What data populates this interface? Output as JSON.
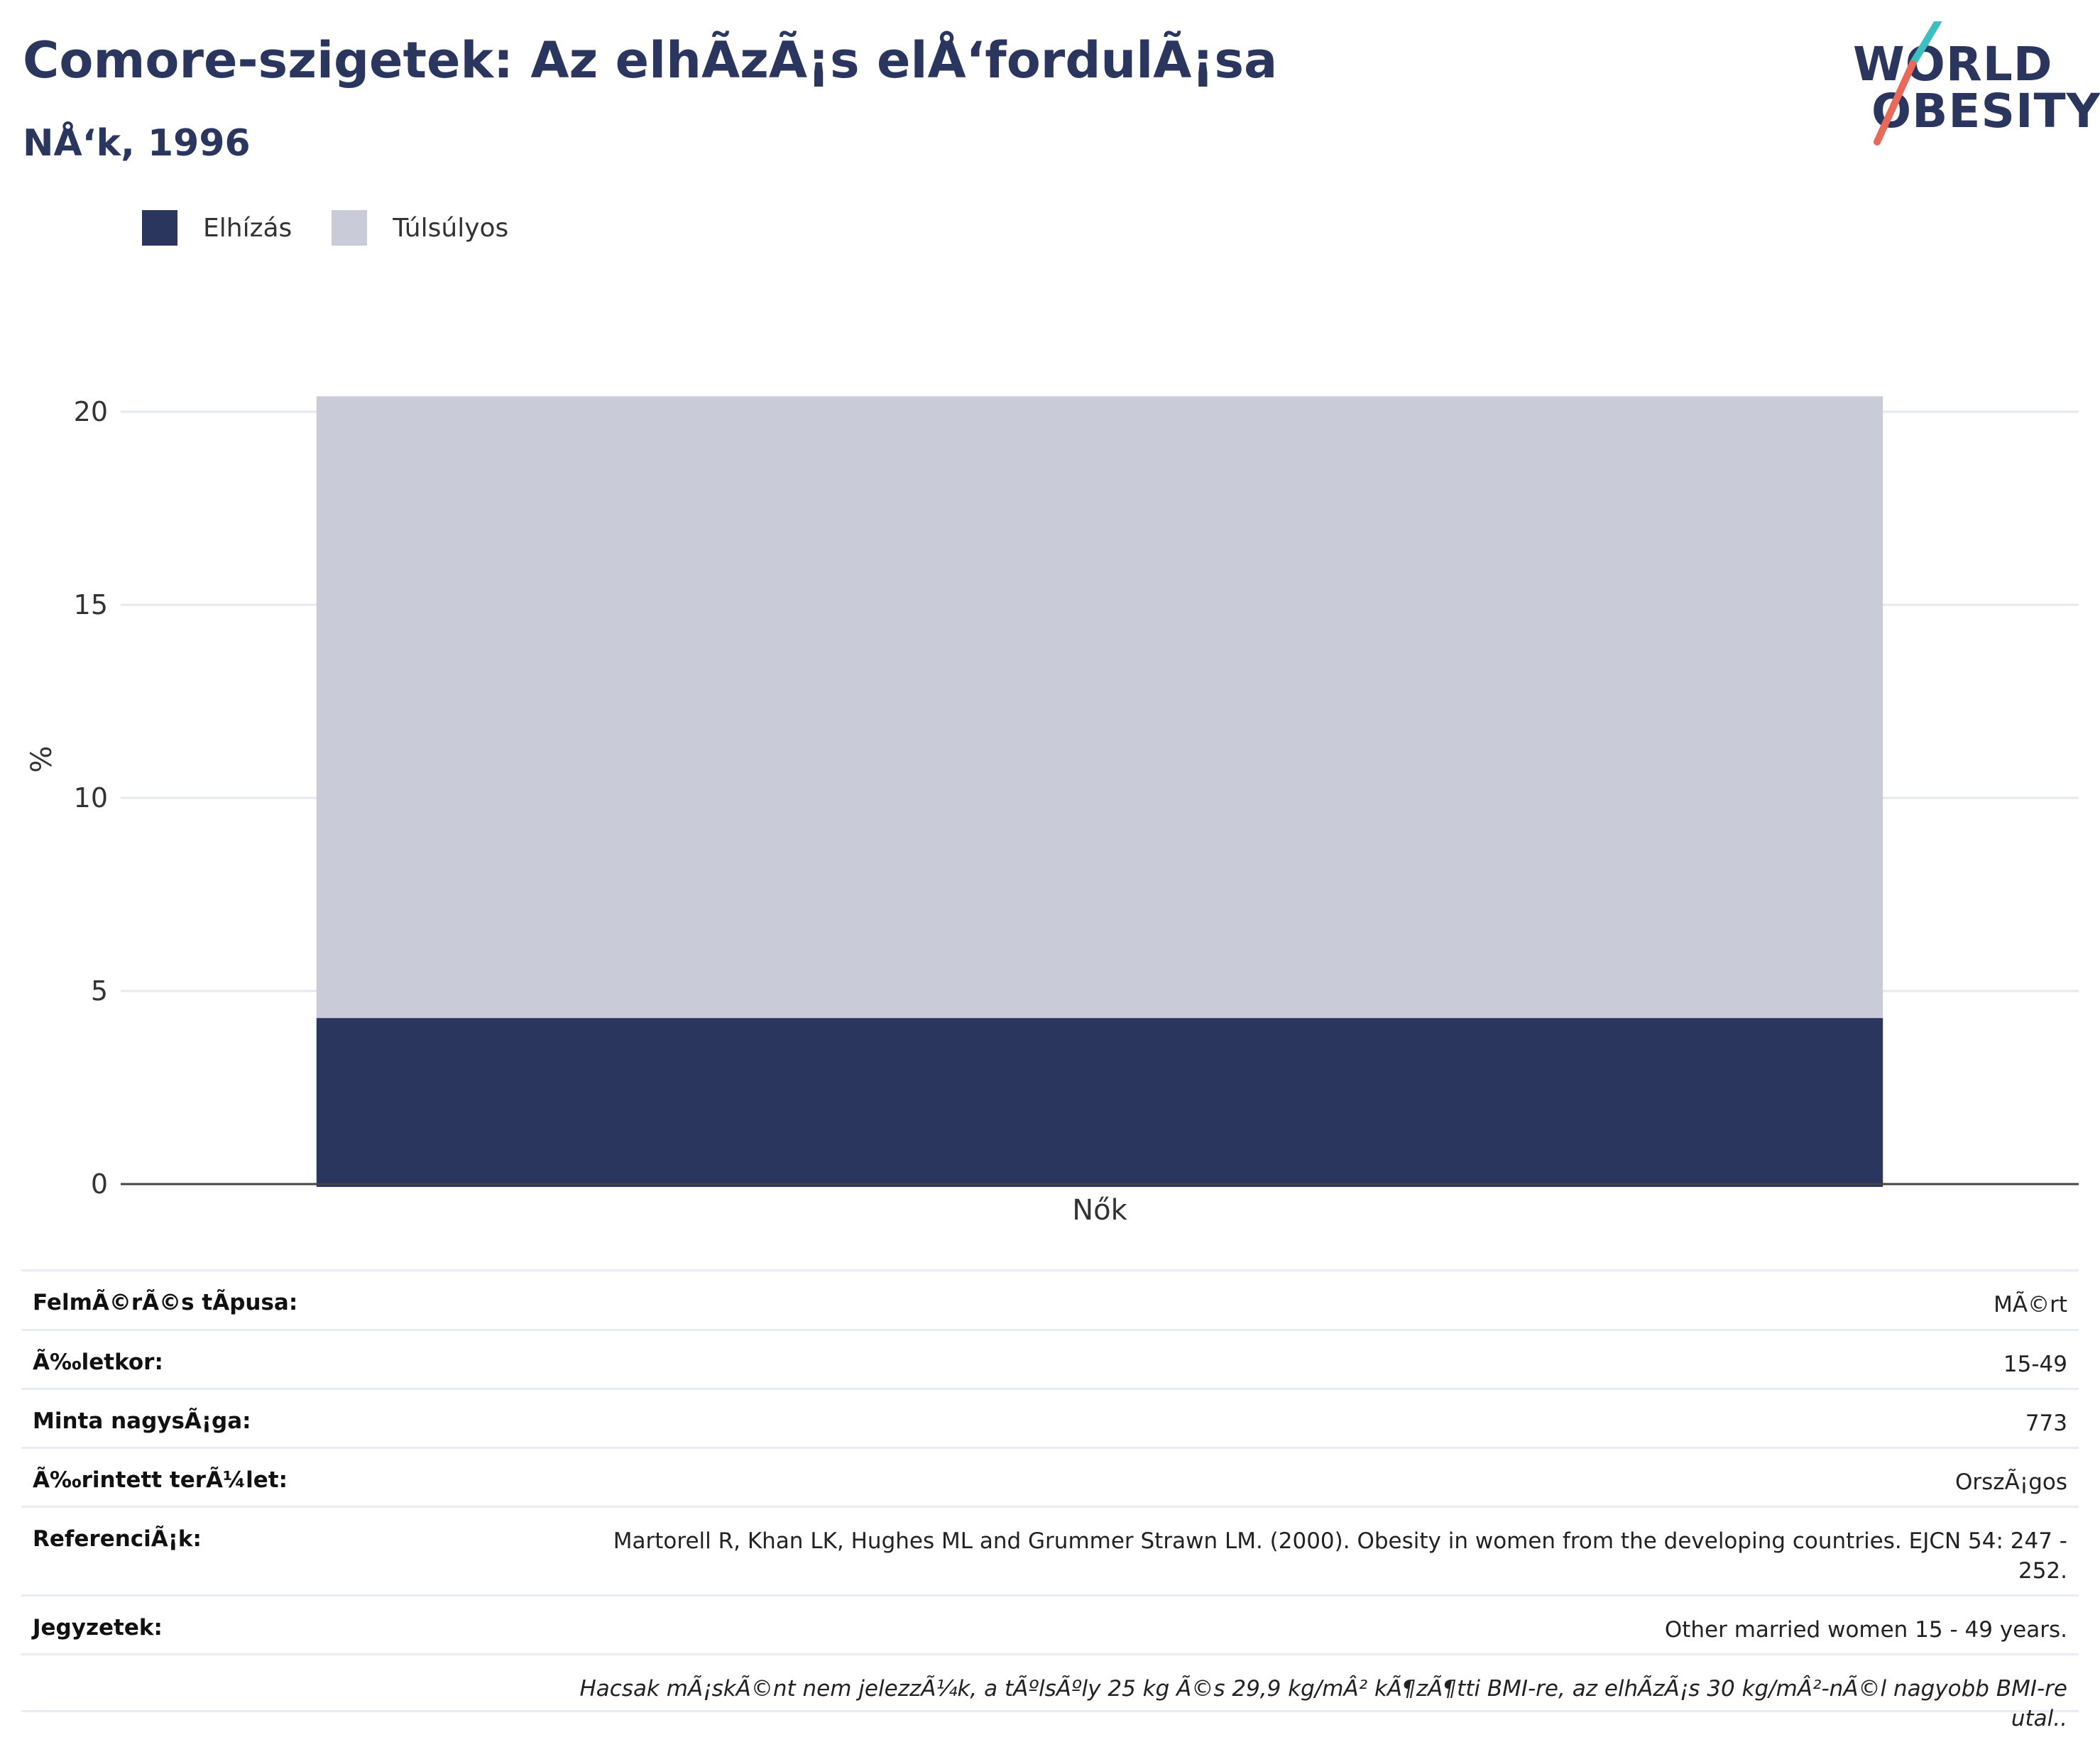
{
  "header": {
    "title": "Comore-szigetek: Az elhÃzÃ¡s elÅ‘fordulÃ¡sa",
    "subtitle": "NÅ‘k, 1996"
  },
  "logo": {
    "line1": "WORLD",
    "line2": "OBESITY",
    "accent_teal": "#3ebfbf",
    "accent_red": "#e8685a"
  },
  "legend": {
    "items": [
      {
        "label": "Elhízás",
        "color": "#2b365f"
      },
      {
        "label": "Túlsúlyos",
        "color": "#c9ccd8"
      }
    ]
  },
  "chart_data": {
    "type": "bar",
    "stacked": true,
    "categories": [
      "Nők"
    ],
    "series": [
      {
        "name": "Elhízás",
        "values": [
          4.3
        ],
        "color": "#2b365f"
      },
      {
        "name": "Túlsúlyos",
        "values": [
          16.1
        ],
        "color": "#c9ccd8"
      }
    ],
    "ylabel": "%",
    "ylim": [
      0,
      22
    ],
    "yticks": [
      0,
      5,
      10,
      15,
      20
    ],
    "grid": true,
    "legend_position": "top-left"
  },
  "info": {
    "rows": [
      {
        "label": "FelmÃ©rÃ©s tÃpusa:",
        "value": "MÃ©rt"
      },
      {
        "label": "Ã‰letkor:",
        "value": "15-49"
      },
      {
        "label": "Minta nagysÃ¡ga:",
        "value": "773"
      },
      {
        "label": "Ã‰rintett terÃ¼let:",
        "value": "OrszÃ¡gos"
      },
      {
        "label": "ReferenciÃ¡k:",
        "value": "Martorell R, Khan LK, Hughes ML and Grummer Strawn LM. (2000). Obesity in women from the developing countries. EJCN 54: 247 - 252."
      },
      {
        "label": "Jegyzetek:",
        "value": "Other married women 15 - 49 years."
      }
    ],
    "footnote": "Hacsak mÃ¡skÃ©nt nem jelezzÃ¼k, a tÃºlsÃºly 25 kg Ã©s 29,9 kg/mÂ² kÃ¶zÃ¶tti BMI-re, az elhÃzÃ¡s 30 kg/mÂ²-nÃ©l nagyobb BMI-re utal.."
  }
}
